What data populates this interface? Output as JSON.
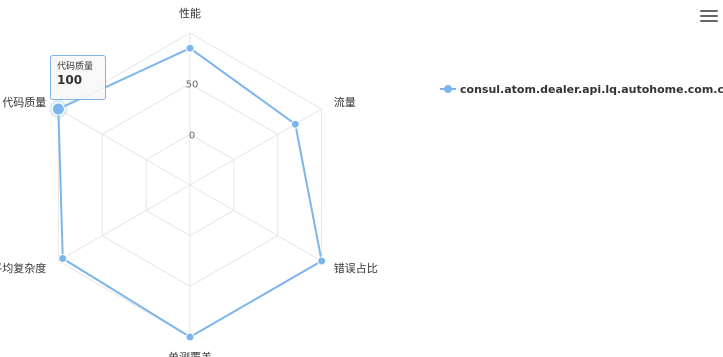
{
  "chart_data": {
    "type": "radar",
    "categories": [
      "性能",
      "流量",
      "错误占比",
      "单测覆盖",
      "平均复杂度",
      "代码质量"
    ],
    "series": [
      {
        "name": "consul.atom.dealer.api.lq.autohome.com.cn",
        "values": [
          85,
          70,
          100,
          100,
          95,
          100
        ]
      }
    ],
    "radial_ticks": [
      "0",
      "50"
    ],
    "rlim": [
      -50,
      100
    ],
    "grid": true,
    "legend_position": "top-right",
    "colors": {
      "series": "#7cb5ec",
      "grid": "#e6e6e6"
    }
  },
  "tooltip": {
    "name": "代码质量",
    "value": "100"
  },
  "menu": {
    "icon": "hamburger-menu-icon"
  }
}
